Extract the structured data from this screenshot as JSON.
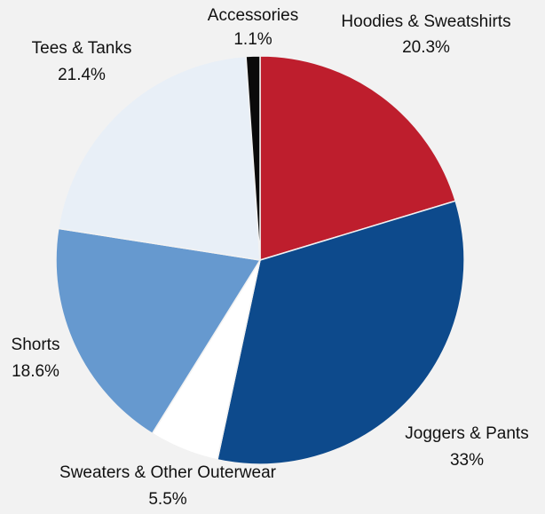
{
  "chart_data": {
    "type": "pie",
    "title": "",
    "slices": [
      {
        "label": "Hoodies & Sweatshirts",
        "value": 20.3,
        "value_label": "20.3%",
        "color": "#be1e2d"
      },
      {
        "label": "Joggers & Pants",
        "value": 33,
        "value_label": "33%",
        "color": "#0d4a8c"
      },
      {
        "label": "Sweaters & Other Outerwear",
        "value": 5.5,
        "value_label": "5.5%",
        "color": "#ffffff"
      },
      {
        "label": "Shorts",
        "value": 18.6,
        "value_label": "18.6%",
        "color": "#6699cf"
      },
      {
        "label": "Tees & Tanks",
        "value": 21.4,
        "value_label": "21.4%",
        "color": "#e8eff7"
      },
      {
        "label": "Accessories",
        "value": 1.1,
        "value_label": "1.1%",
        "color": "#0a0a0a"
      }
    ],
    "start_angle_deg": 0,
    "direction": "clockwise",
    "legend": "none",
    "background": "#f2f2f2"
  }
}
